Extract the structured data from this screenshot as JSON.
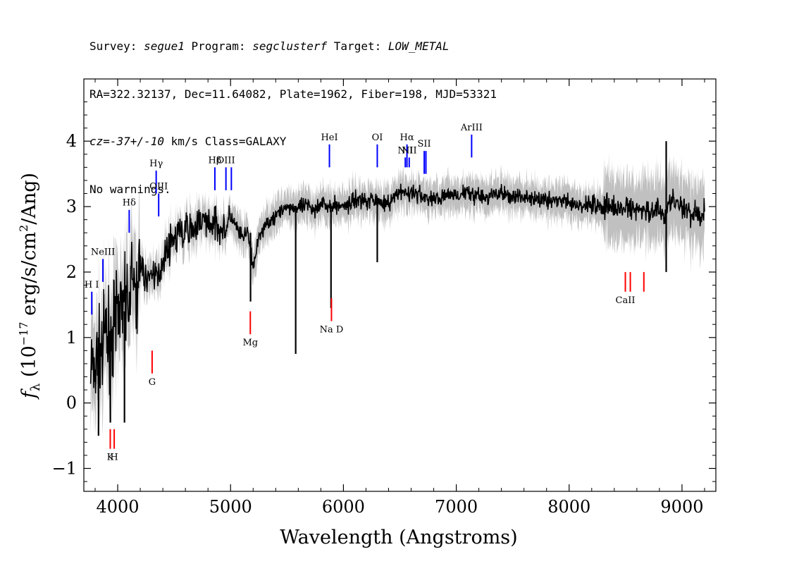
{
  "header": {
    "line1": {
      "a": "Survey: ",
      "survey": "segue1",
      "b": " Program: ",
      "program": "segclusterf",
      "c": " Target: ",
      "target": "LOW_METAL"
    },
    "line2": "RA=322.32137, Dec=11.64082, Plate=1962, Fiber=198, MJD=53321",
    "line3": {
      "cz": "cz=-37+/-10",
      "rest": " km/s Class=GALAXY"
    },
    "line4": "No warnings."
  },
  "chart_data": {
    "type": "line",
    "title": "",
    "xlabel": "Wavelength (Angstroms)",
    "ylabel": "f_λ (10^-17 erg/s/cm^2/Ang)",
    "xlim": [
      3700,
      9300
    ],
    "ylim": [
      -1.35,
      4.95
    ],
    "x_ticks": [
      4000,
      5000,
      6000,
      7000,
      8000,
      9000
    ],
    "x_tick_labels": [
      "4000",
      "5000",
      "6000",
      "7000",
      "8000",
      "9000"
    ],
    "y_ticks": [
      -1,
      0,
      1,
      2,
      3,
      4
    ],
    "y_tick_labels": [
      "−1",
      "0",
      "1",
      "2",
      "3",
      "4"
    ],
    "grid": false,
    "colors": {
      "flux": "#000000",
      "error_band": "#c0c0c0",
      "emission_marker": "#0000ff",
      "absorption_marker": "#ff0000"
    },
    "series": [
      {
        "kind": "spectrum_flux",
        "x": [
          3760,
          3800,
          3850,
          3900,
          3950,
          4000,
          4050,
          4100,
          4150,
          4200,
          4250,
          4300,
          4350,
          4400,
          4450,
          4500,
          4550,
          4600,
          4650,
          4700,
          4750,
          4800,
          4850,
          4900,
          4950,
          5000,
          5050,
          5100,
          5150,
          5200,
          5250,
          5300,
          5350,
          5400,
          5450,
          5500,
          5550,
          5600,
          5650,
          5700,
          5750,
          5800,
          5850,
          5900,
          5950,
          6000,
          6100,
          6200,
          6300,
          6400,
          6500,
          6600,
          6700,
          6800,
          6900,
          7000,
          7100,
          7200,
          7300,
          7400,
          7500,
          7600,
          7700,
          7800,
          7900,
          8000,
          8100,
          8200,
          8300,
          8400,
          8500,
          8600,
          8700,
          8800,
          8850,
          8900,
          9000,
          9100,
          9200
        ],
        "y": [
          0.5,
          0.6,
          0.7,
          0.9,
          1.1,
          1.4,
          1.3,
          1.7,
          1.8,
          2.0,
          1.9,
          2.0,
          1.9,
          2.2,
          2.4,
          2.5,
          2.55,
          2.6,
          2.7,
          2.7,
          2.75,
          2.8,
          2.7,
          2.75,
          2.6,
          2.8,
          2.7,
          2.5,
          2.6,
          2.1,
          2.5,
          2.7,
          2.8,
          2.9,
          2.9,
          3.0,
          3.0,
          2.95,
          3.0,
          3.0,
          2.95,
          3.1,
          3.0,
          3.0,
          3.0,
          3.0,
          3.1,
          3.1,
          3.1,
          3.05,
          3.2,
          3.2,
          3.15,
          3.1,
          3.15,
          3.2,
          3.2,
          3.15,
          3.15,
          3.2,
          3.15,
          3.15,
          3.1,
          3.1,
          3.1,
          3.05,
          3.0,
          3.05,
          3.0,
          3.0,
          2.95,
          2.95,
          2.9,
          3.0,
          2.85,
          3.1,
          2.95,
          2.9,
          2.9
        ]
      }
    ],
    "features": [
      {
        "x": 5577,
        "y_min": 0.75,
        "y_max": 3.0
      },
      {
        "x": 5890,
        "y_min": 1.45,
        "y_max": 2.95
      },
      {
        "x": 5177,
        "y_min": 1.55,
        "y_max": 2.6
      },
      {
        "x": 6300,
        "y_min": 2.15,
        "y_max": 3.1
      },
      {
        "x": 8860,
        "y_min": 2.0,
        "y_max": 4.0
      },
      {
        "x": 3830,
        "y_min": -0.5,
        "y_max": 1.0
      },
      {
        "x": 3935,
        "y_min": -0.3,
        "y_max": 1.1
      },
      {
        "x": 4060,
        "y_min": -0.3,
        "y_max": 1.4
      }
    ],
    "line_markers": [
      {
        "label": "H I",
        "x": 3770,
        "color": "emission",
        "y_bottom": 1.35,
        "y_top": 1.7
      },
      {
        "label": "NeIII",
        "x": 3869,
        "color": "emission",
        "y_bottom": 1.85,
        "y_top": 2.2
      },
      {
        "label": "Hδ",
        "x": 4102,
        "color": "emission",
        "y_bottom": 2.6,
        "y_top": 2.95
      },
      {
        "label": "Hγ",
        "x": 4341,
        "color": "emission",
        "y_bottom": 3.2,
        "y_top": 3.55
      },
      {
        "label": "OIII",
        "x": 4363,
        "color": "emission",
        "y_bottom": 2.85,
        "y_top": 3.2
      },
      {
        "label": "Hβ",
        "x": 4861,
        "color": "emission",
        "y_bottom": 3.25,
        "y_top": 3.6
      },
      {
        "label": "OIII",
        "x": 4959,
        "color": "emission",
        "y_bottom": 3.25,
        "y_top": 3.6
      },
      {
        "label": "",
        "x": 5007,
        "color": "emission",
        "y_bottom": 3.25,
        "y_top": 3.6
      },
      {
        "label": "HeI",
        "x": 5876,
        "color": "emission",
        "y_bottom": 3.6,
        "y_top": 3.95
      },
      {
        "label": "OI",
        "x": 6300,
        "color": "emission",
        "y_bottom": 3.6,
        "y_top": 3.95
      },
      {
        "label": "NII",
        "x": 6548,
        "color": "emission",
        "y_bottom": 3.6,
        "y_top": 3.75
      },
      {
        "label": "Hα",
        "x": 6563,
        "color": "emission",
        "y_bottom": 3.6,
        "y_top": 3.95
      },
      {
        "label": "NII",
        "x": 6583,
        "color": "emission",
        "y_bottom": 3.6,
        "y_top": 3.75
      },
      {
        "label": "SII",
        "x": 6716,
        "color": "emission",
        "y_bottom": 3.5,
        "y_top": 3.85
      },
      {
        "label": "",
        "x": 6731,
        "color": "emission",
        "y_bottom": 3.5,
        "y_top": 3.85
      },
      {
        "label": "ArIII",
        "x": 7136,
        "color": "emission",
        "y_bottom": 3.75,
        "y_top": 4.1
      },
      {
        "label": "K",
        "x": 3934,
        "color": "absorption",
        "y_bottom": -0.7,
        "y_top": -0.4
      },
      {
        "label": "H",
        "x": 3969,
        "color": "absorption",
        "y_bottom": -0.7,
        "y_top": -0.4
      },
      {
        "label": "G",
        "x": 4305,
        "color": "absorption",
        "y_bottom": 0.45,
        "y_top": 0.8
      },
      {
        "label": "Mg",
        "x": 5175,
        "color": "absorption",
        "y_bottom": 1.05,
        "y_top": 1.4
      },
      {
        "label": "Na D",
        "x": 5894,
        "color": "absorption",
        "y_bottom": 1.25,
        "y_top": 1.6
      },
      {
        "label": "CaII",
        "x": 8498,
        "color": "absorption",
        "y_bottom": 1.7,
        "y_top": 2.0
      },
      {
        "label": "",
        "x": 8542,
        "color": "absorption",
        "y_bottom": 1.7,
        "y_top": 2.0
      },
      {
        "label": "",
        "x": 8662,
        "color": "absorption",
        "y_bottom": 1.7,
        "y_top": 2.0
      }
    ]
  }
}
